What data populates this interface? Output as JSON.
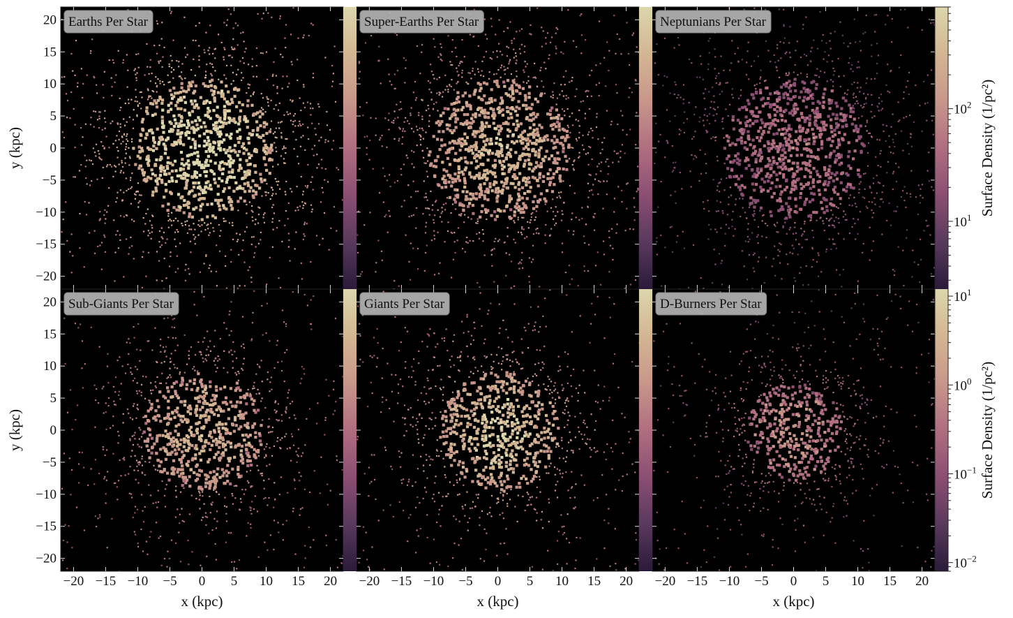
{
  "chart_data": [
    {
      "type": "heatmap",
      "title": "Earths Per Star",
      "xlabel": "",
      "ylabel": "y  (kpc)",
      "xlim": [
        -22,
        22
      ],
      "ylim": [
        -22,
        22
      ],
      "intensity": 0.95,
      "extent": 13,
      "colorbar": "top"
    },
    {
      "type": "heatmap",
      "title": "Super-Earths Per Star",
      "xlabel": "",
      "ylabel": "",
      "xlim": [
        -22,
        22
      ],
      "ylim": [
        -22,
        22
      ],
      "intensity": 0.8,
      "extent": 13,
      "colorbar": "top"
    },
    {
      "type": "heatmap",
      "title": "Neptunians Per Star",
      "xlabel": "",
      "ylabel": "",
      "xlim": [
        -22,
        22
      ],
      "ylim": [
        -22,
        22
      ],
      "intensity": 0.5,
      "extent": 13,
      "colorbar": "top"
    },
    {
      "type": "heatmap",
      "title": "Sub-Giants Per Star",
      "xlabel": "x  (kpc)",
      "ylabel": "y  (kpc)",
      "xlim": [
        -22,
        22
      ],
      "ylim": [
        -22,
        22
      ],
      "intensity": 0.78,
      "extent": 11,
      "colorbar": "bottom"
    },
    {
      "type": "heatmap",
      "title": "Giants Per Star",
      "xlabel": "x  (kpc)",
      "ylabel": "",
      "xlim": [
        -22,
        22
      ],
      "ylim": [
        -22,
        22
      ],
      "intensity": 0.85,
      "extent": 11,
      "colorbar": "bottom"
    },
    {
      "type": "heatmap",
      "title": "D-Burners Per Star",
      "xlabel": "x  (kpc)",
      "ylabel": "",
      "xlim": [
        -22,
        22
      ],
      "ylim": [
        -22,
        22
      ],
      "intensity": 0.6,
      "extent": 9,
      "colorbar": "bottom"
    }
  ],
  "ticks": {
    "x": [
      -20,
      -15,
      -10,
      -5,
      0,
      5,
      10,
      15,
      20
    ],
    "y": [
      20,
      15,
      10,
      5,
      0,
      -5,
      -10,
      -15,
      -20
    ]
  },
  "colorbars": {
    "top": {
      "label": "Surface Density (1/pc²)",
      "scale": "log",
      "range": [
        2.5,
        800
      ],
      "ticks": [
        {
          "base": "10",
          "exp": "2",
          "value": 100
        },
        {
          "base": "10",
          "exp": "1",
          "value": 10
        }
      ]
    },
    "bottom": {
      "label": "Surface Density (1/pc²)",
      "scale": "log",
      "range": [
        0.008,
        12
      ],
      "ticks": [
        {
          "base": "10",
          "exp": "1",
          "value": 10
        },
        {
          "base": "10",
          "exp": "0",
          "value": 1
        },
        {
          "base": "10",
          "exp": "−1",
          "value": 0.1
        },
        {
          "base": "10",
          "exp": "−2",
          "value": 0.01
        }
      ]
    }
  },
  "colormap": [
    "#2a1a3a",
    "#5a3a5e",
    "#8a4e72",
    "#b06e80",
    "#c8978a",
    "#d3b593",
    "#dcd6ad"
  ]
}
